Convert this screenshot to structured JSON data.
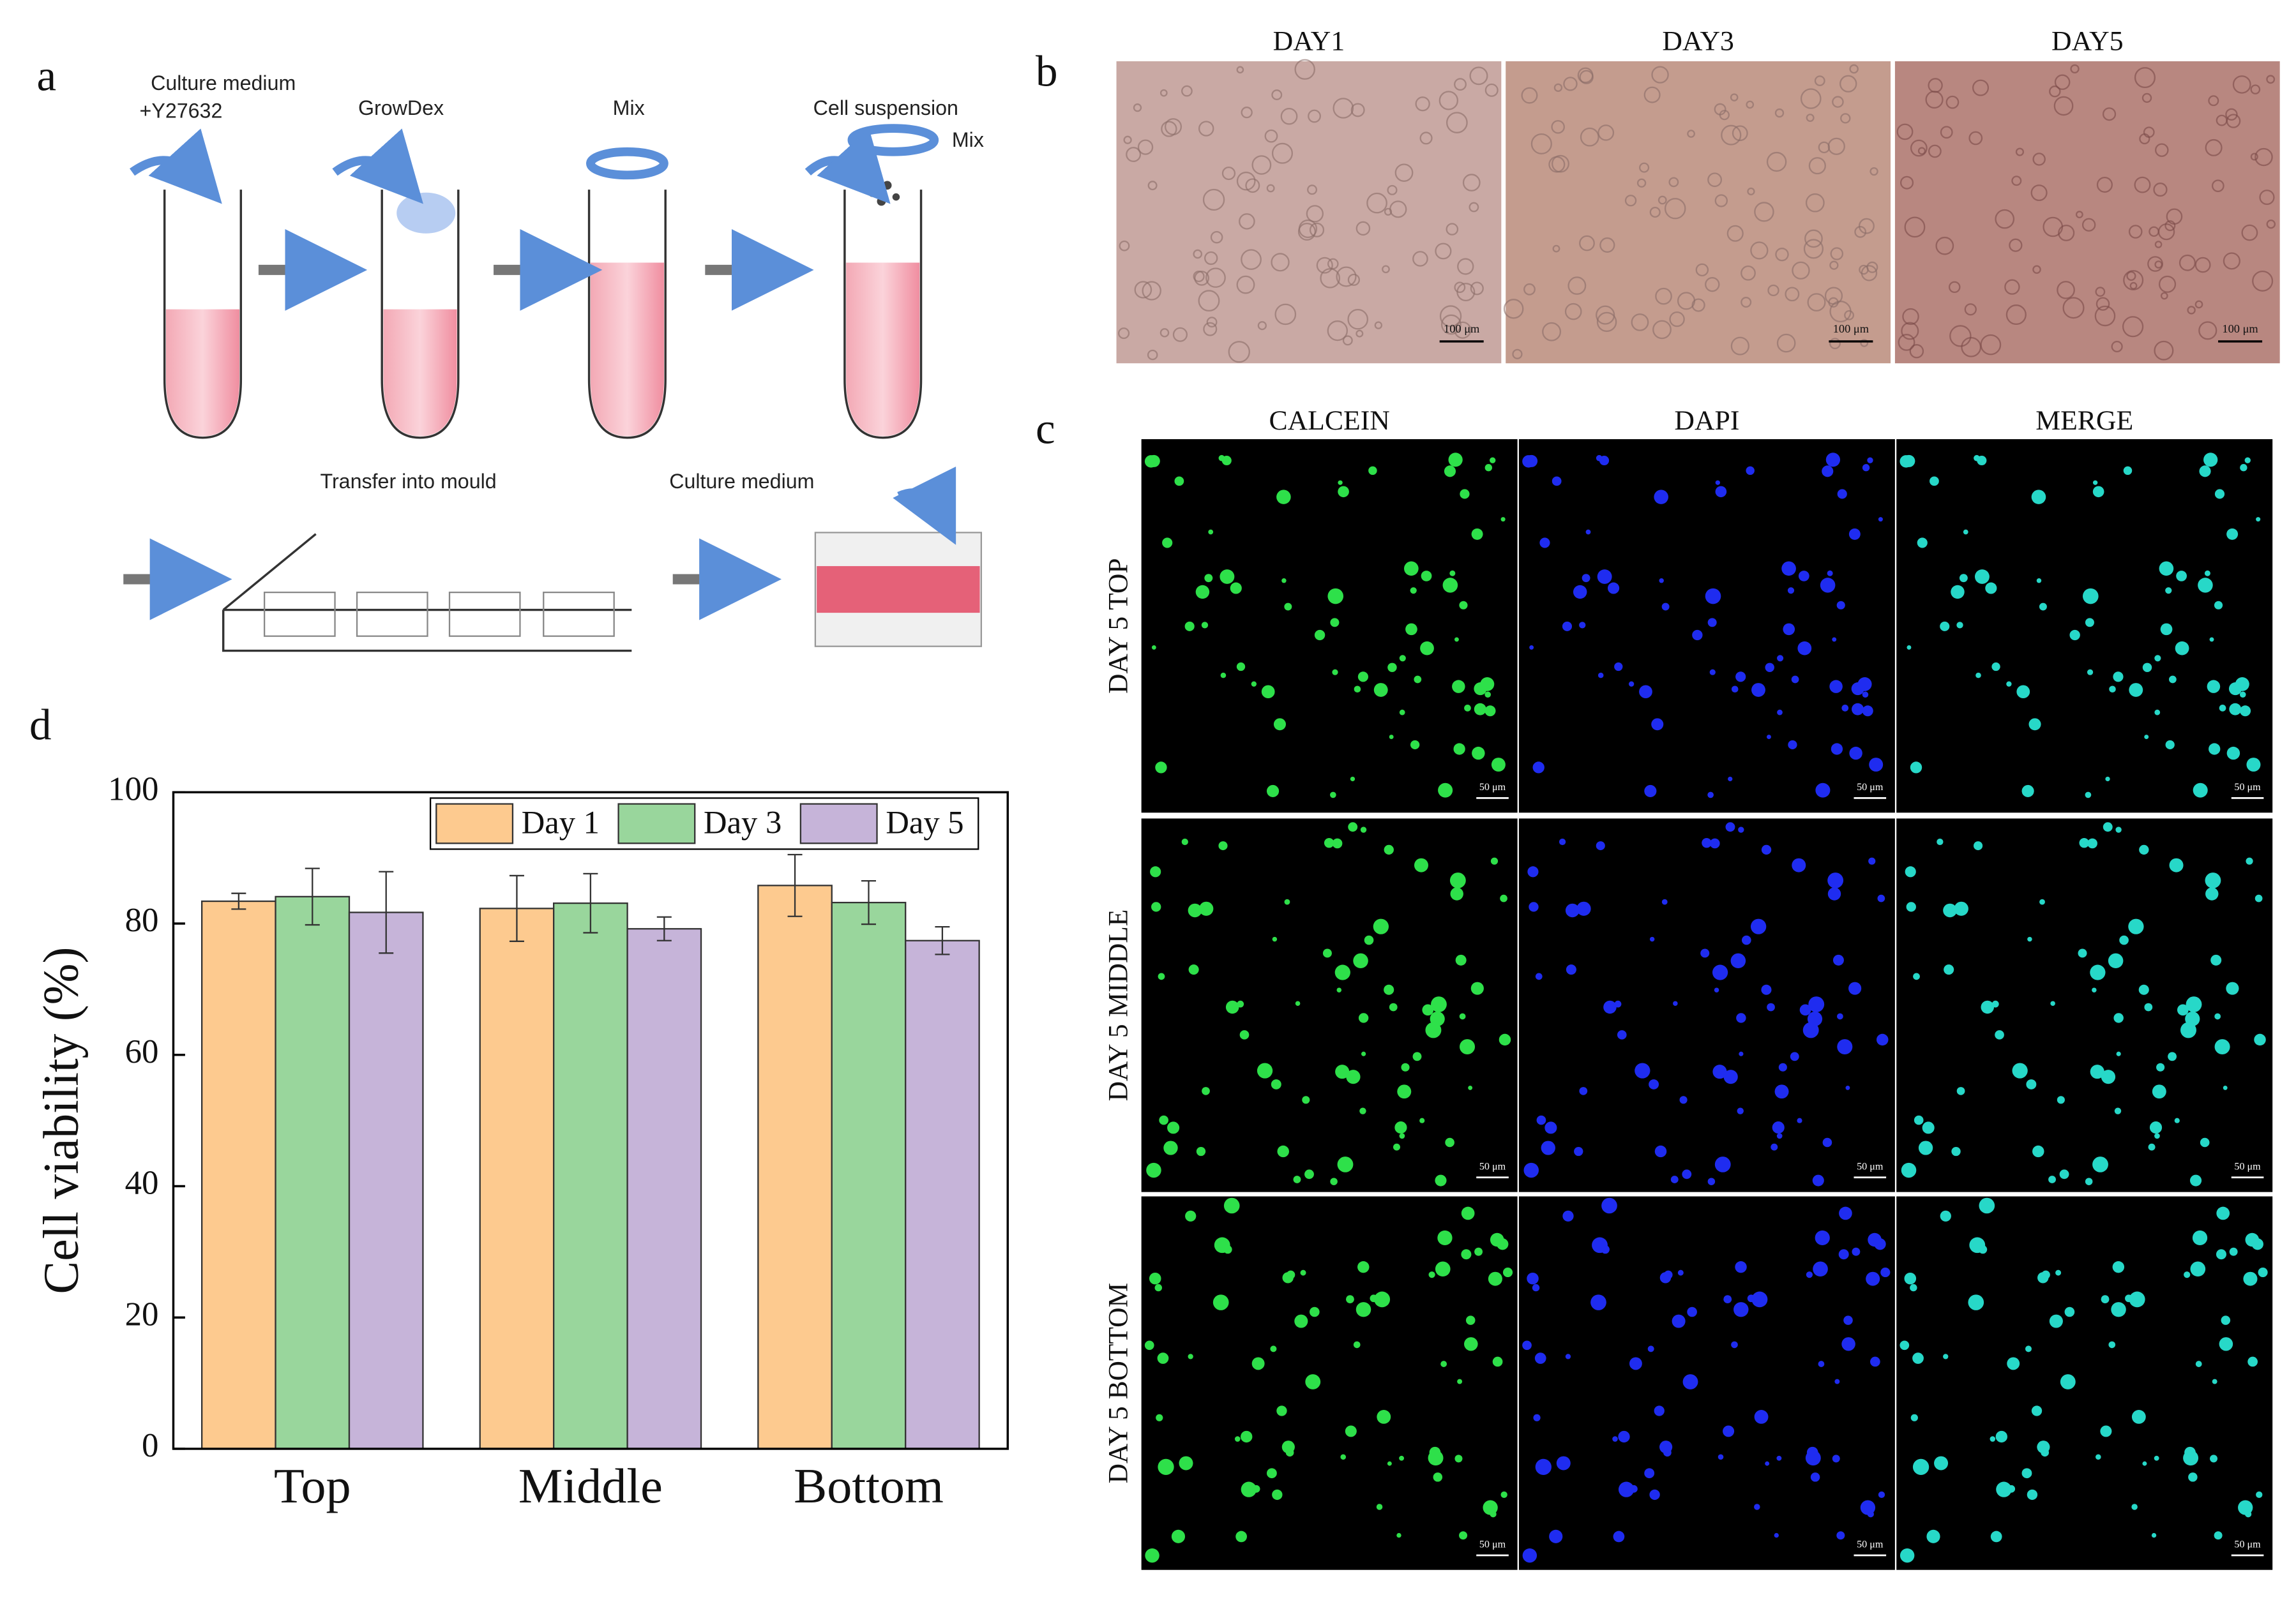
{
  "panels": {
    "a": {
      "label": "a",
      "texts": [
        "Culture medium",
        "+Y27632",
        "GrowDex",
        "Mix",
        "Cell suspension",
        "Mix",
        "Transfer into mould",
        "Culture medium"
      ]
    },
    "b": {
      "label": "b",
      "columns": [
        "DAY1",
        "DAY3",
        "DAY5"
      ],
      "scale_bar": "100 μm"
    },
    "c": {
      "label": "c",
      "columns": [
        "CALCEIN",
        "DAPI",
        "MERGE"
      ],
      "rows": [
        "DAY 5 TOP",
        "DAY 5 MIDDLE",
        "DAY 5 BOTTOM"
      ],
      "scale_bar": "50 μm"
    },
    "d": {
      "label": "d"
    }
  },
  "chart_data": {
    "type": "bar",
    "ylabel": "Cell viability (%)",
    "categories": [
      "Top",
      "Middle",
      "Bottom"
    ],
    "series": [
      {
        "name": "Day 1",
        "color": "#fdca8f",
        "values": [
          83.4,
          82.3,
          85.8
        ],
        "errors": [
          1.2,
          5.0,
          4.7
        ]
      },
      {
        "name": "Day 3",
        "color": "#99d69c",
        "values": [
          84.1,
          83.1,
          83.2
        ],
        "errors": [
          4.3,
          4.5,
          3.3
        ]
      },
      {
        "name": "Day 5",
        "color": "#c6b4d9",
        "values": [
          81.7,
          79.2,
          77.4
        ],
        "errors": [
          6.2,
          1.8,
          2.1
        ]
      }
    ],
    "ylim": [
      0,
      100
    ],
    "yticks": [
      0,
      20,
      40,
      60,
      80,
      100
    ],
    "legend": "top-right"
  }
}
